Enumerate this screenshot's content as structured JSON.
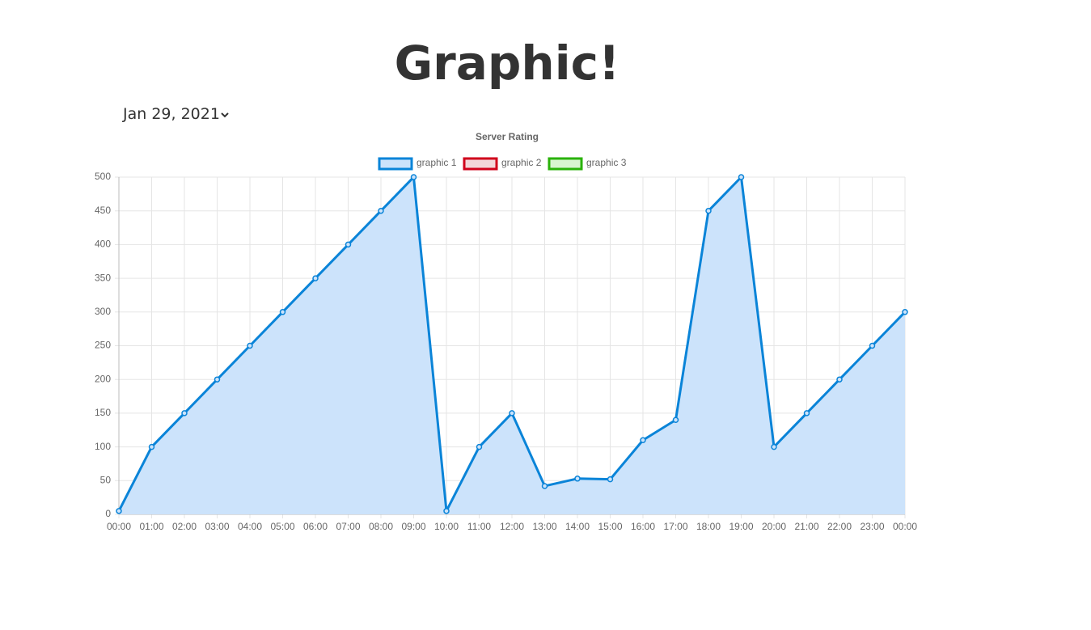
{
  "header": {
    "title": "Graphic!",
    "date": "Jan 29, 2021"
  },
  "chart_data": {
    "type": "line",
    "title": "Server Rating",
    "categories": [
      "00:00",
      "01:00",
      "02:00",
      "03:00",
      "04:00",
      "05:00",
      "06:00",
      "07:00",
      "08:00",
      "09:00",
      "10:00",
      "11:00",
      "12:00",
      "13:00",
      "14:00",
      "15:00",
      "16:00",
      "17:00",
      "18:00",
      "19:00",
      "20:00",
      "21:00",
      "22:00",
      "23:00",
      "00:00"
    ],
    "series": [
      {
        "name": "graphic 1",
        "color": "#0a84d8",
        "fill": "#cce3fb",
        "values": [
          5,
          100,
          150,
          200,
          250,
          300,
          350,
          400,
          450,
          500,
          5,
          100,
          150,
          42,
          53,
          52,
          110,
          140,
          450,
          500,
          100,
          150,
          200,
          250,
          300
        ]
      },
      {
        "name": "graphic 2",
        "color": "#d0021b",
        "fill": "#f3d6d9",
        "values": [
          null,
          null,
          null,
          null,
          null,
          null,
          null,
          null,
          null,
          null,
          null,
          null,
          null,
          null,
          null,
          null,
          null,
          null,
          null,
          null,
          null,
          null,
          null,
          null,
          null
        ]
      },
      {
        "name": "graphic 3",
        "color": "#2ab20a",
        "fill": "#d8f5d0",
        "values": [
          null,
          null,
          null,
          null,
          null,
          null,
          null,
          null,
          null,
          null,
          null,
          null,
          null,
          null,
          null,
          null,
          null,
          null,
          null,
          null,
          null,
          null,
          null,
          null,
          null
        ]
      }
    ],
    "ylim": [
      0,
      500
    ],
    "yticks": [
      0,
      50,
      100,
      150,
      200,
      250,
      300,
      350,
      400,
      450,
      500
    ],
    "grid": true,
    "legend": "top"
  }
}
